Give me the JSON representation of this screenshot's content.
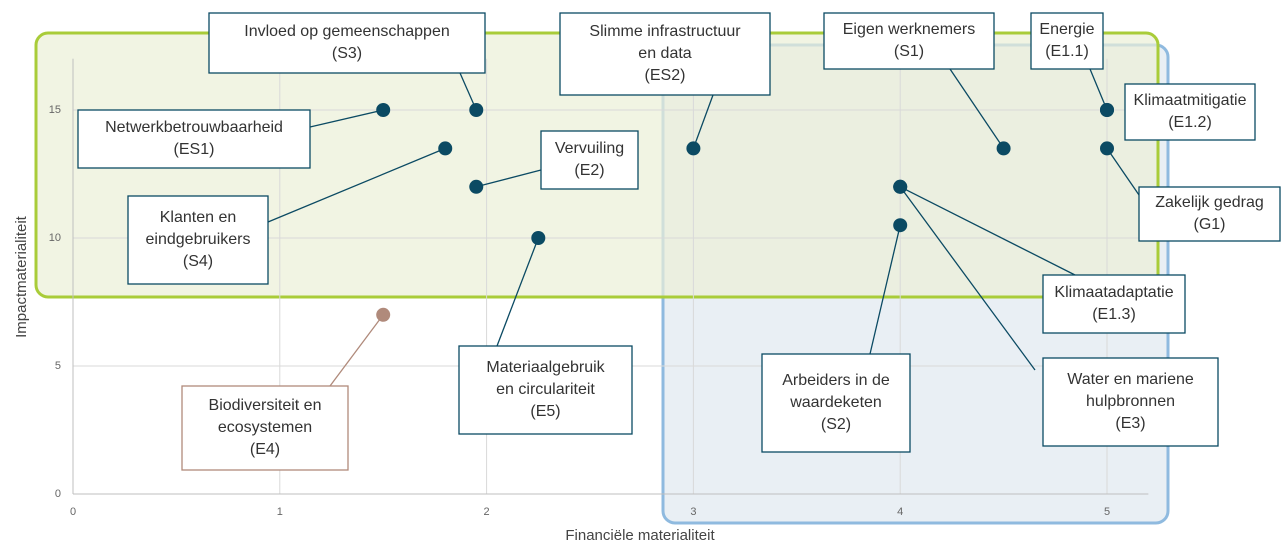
{
  "chart_data": {
    "type": "scatter",
    "xlabel": "Financiële materialiteit",
    "ylabel": "Impactmaterialiteit",
    "xlim": [
      0,
      5.2
    ],
    "ylim": [
      0,
      17
    ],
    "xticks": [
      0,
      1,
      2,
      3,
      4,
      5
    ],
    "yticks": [
      0,
      5,
      10,
      15
    ],
    "grid": true,
    "color": "#0b4a63",
    "points": [
      {
        "label": [
          "Netwerkbetrouwbaarheid",
          "(ES1)"
        ],
        "x": 1.5,
        "y": 15
      },
      {
        "label": [
          "Invloed op gemeenschappen",
          "(S3)"
        ],
        "x": 1.95,
        "y": 15
      },
      {
        "label": [
          "Klanten en",
          "eindgebruikers",
          "(S4)"
        ],
        "x": 1.8,
        "y": 13.5
      },
      {
        "label": [
          "Vervuiling",
          "(E2)"
        ],
        "x": 1.95,
        "y": 12
      },
      {
        "label": [
          "Materiaalgebruik",
          "en circulariteit",
          "(E5)"
        ],
        "x": 2.25,
        "y": 10
      },
      {
        "label": [
          "Biodiversiteit en",
          "ecosystemen",
          "(E4)"
        ],
        "x": 1.5,
        "y": 7,
        "color": "#b08a7b"
      },
      {
        "label": [
          "Slimme infrastructuur",
          "en data",
          "(ES2)"
        ],
        "x": 3,
        "y": 13.5
      },
      {
        "label": [
          "Eigen werknemers",
          "(S1)"
        ],
        "x": 4.5,
        "y": 13.5
      },
      {
        "label": [
          "Energie",
          "(E1.1)"
        ],
        "x": 5,
        "y": 15
      },
      {
        "label": [
          "Klimaatmitigatie",
          "(E1.2)"
        ],
        "x": 5,
        "y": 15
      },
      {
        "label": [
          "Zakelijk gedrag",
          "(G1)"
        ],
        "x": 5,
        "y": 13.5
      },
      {
        "label": [
          "Klimaatadaptatie",
          "(E1.3)"
        ],
        "x": 4,
        "y": 12
      },
      {
        "label": [
          "Water en mariene",
          "hulpbronnen",
          "(E3)"
        ],
        "x": 4,
        "y": 12
      },
      {
        "label": [
          "Arbeiders in de",
          "waardeketen",
          "(S2)"
        ],
        "x": 4,
        "y": 10.5
      }
    ]
  }
}
